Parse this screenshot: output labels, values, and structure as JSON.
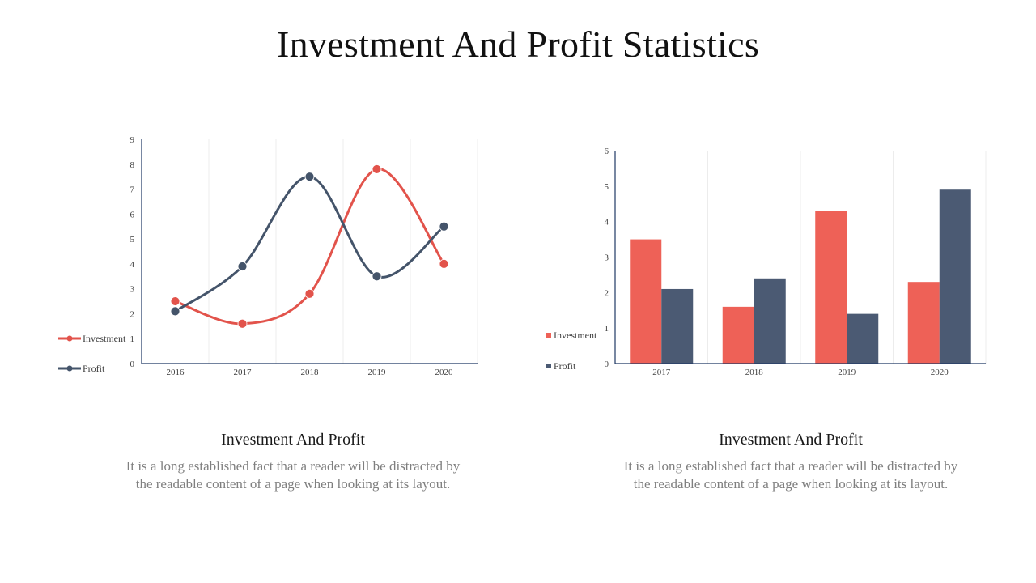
{
  "page": {
    "title": "Investment And Profit Statistics"
  },
  "chart_data": [
    {
      "type": "line",
      "x": [
        "2016",
        "2017",
        "2018",
        "2019",
        "2020"
      ],
      "ylim": [
        0,
        9
      ],
      "yticks": [
        0,
        1,
        2,
        3,
        4,
        5,
        6,
        7,
        8,
        9
      ],
      "grid": "vertical",
      "legend": "left",
      "series": [
        {
          "name": "Investment",
          "values": [
            2.5,
            1.6,
            2.8,
            7.8,
            4.0
          ],
          "color": "#e2534b"
        },
        {
          "name": "Profit",
          "values": [
            2.1,
            3.9,
            7.5,
            3.5,
            5.5
          ],
          "color": "#44546a"
        }
      ]
    },
    {
      "type": "bar",
      "categories": [
        "2017",
        "2018",
        "2019",
        "2020"
      ],
      "ylim": [
        0,
        6
      ],
      "yticks": [
        0,
        1,
        2,
        3,
        4,
        5,
        6
      ],
      "grid": "vertical",
      "legend": "left",
      "series": [
        {
          "name": "Investment",
          "values": [
            3.5,
            1.6,
            4.3,
            2.3
          ],
          "color": "#ee6157"
        },
        {
          "name": "Profit",
          "values": [
            2.1,
            2.4,
            1.4,
            4.9
          ],
          "color": "#4b5a73"
        }
      ]
    }
  ],
  "captions": [
    {
      "title": "Investment And Profit",
      "body": "It is a long established fact that a reader will be distracted by the readable content of a page when looking at its layout."
    },
    {
      "title": "Investment And Profit",
      "body": "It is a long established fact that a reader will be distracted by the readable content of a page when looking at its layout."
    }
  ]
}
